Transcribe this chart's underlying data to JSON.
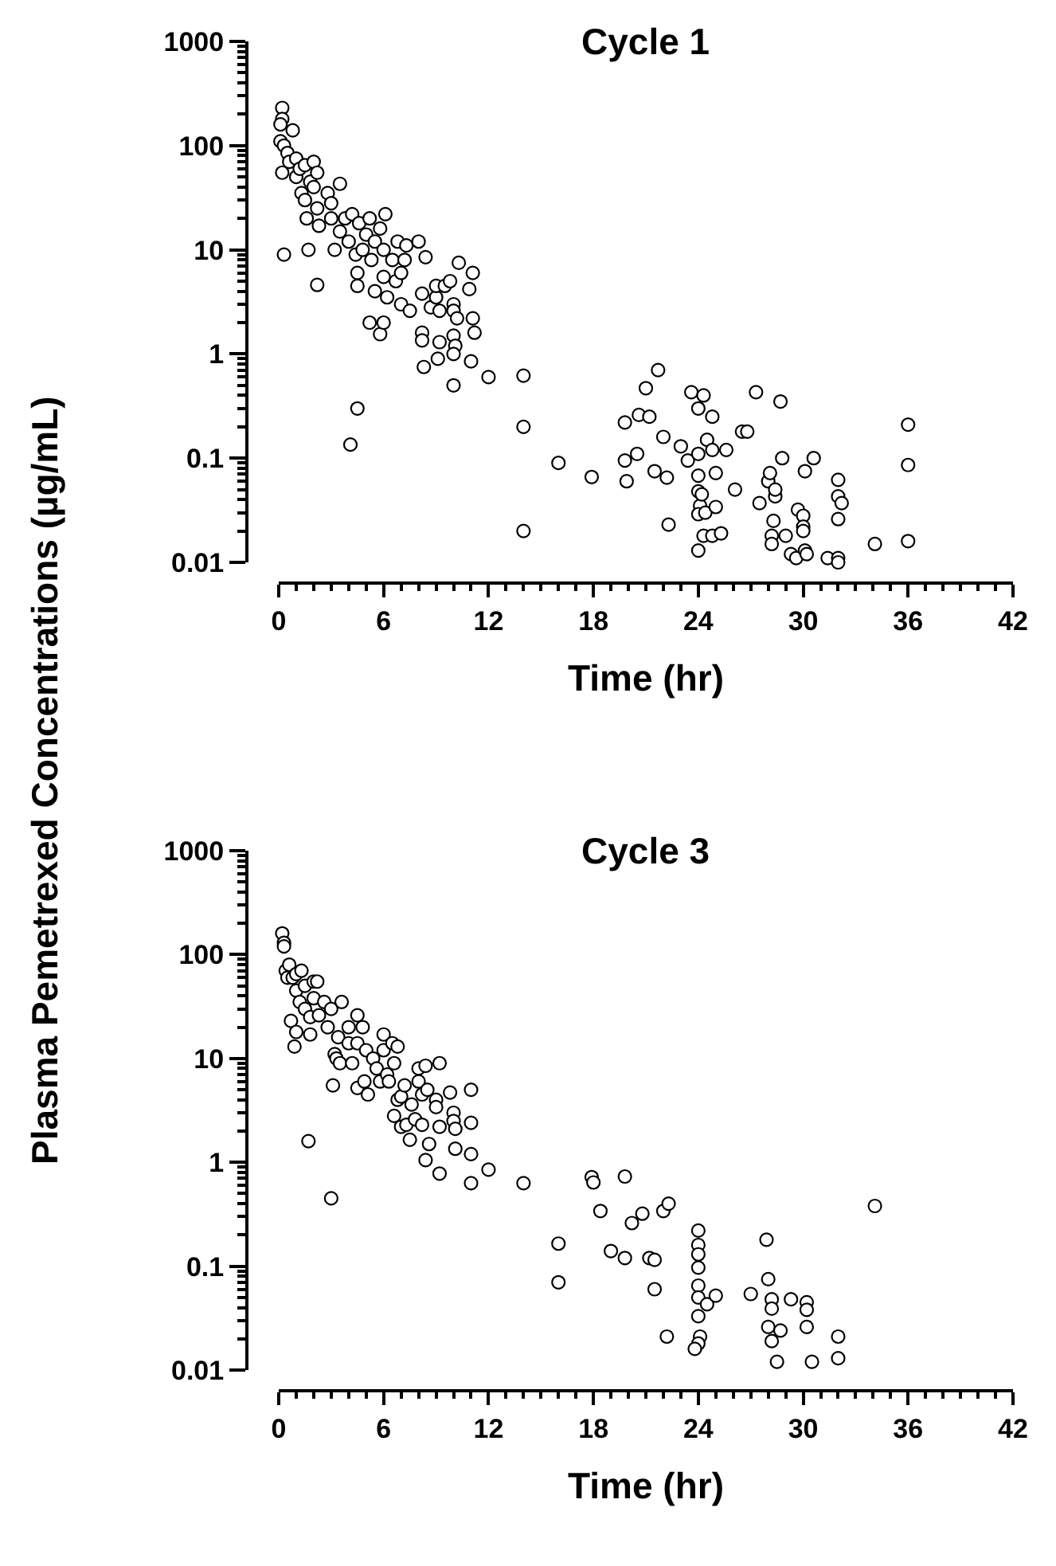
{
  "chart_data": [
    {
      "type": "scatter",
      "title": "Cycle 1",
      "xlabel": "Time (hr)",
      "ylabel": "Plasma Pemetrexed Concentrations (µg/mL)",
      "log": "y",
      "marker": "circle",
      "xlim": [
        0,
        42
      ],
      "xticks": [
        0,
        6,
        12,
        18,
        24,
        30,
        36,
        42
      ],
      "ylim": [
        0.01,
        1000
      ],
      "yticks": [
        0.01,
        0.1,
        1,
        10,
        100,
        1000
      ],
      "series": [
        {
          "color": "#ffffff",
          "x": [
            0.2,
            0.2,
            0.1,
            0.1,
            0.3,
            0.2,
            0.3,
            0.5,
            0.6,
            0.8,
            1,
            1,
            1.2,
            1.5,
            1.3,
            1.5,
            1.8,
            2,
            2,
            1.6,
            1.7,
            2.2,
            2.2,
            2.3,
            2.2,
            2.8,
            3,
            3,
            3.2,
            3.5,
            3.5,
            3.8,
            4,
            4.2,
            4.4,
            4.5,
            4.5,
            4.6,
            4.8,
            5,
            5.2,
            5.3,
            5.5,
            5.5,
            5.2,
            5.8,
            5.8,
            6,
            6,
            6.1,
            6,
            6.2,
            6.5,
            6.7,
            6.8,
            7,
            7,
            7.2,
            7.3,
            7.5,
            8,
            8.4,
            8.2,
            8.2,
            8.2,
            8.3,
            8.7,
            9,
            9,
            9.2,
            9.2,
            9.1,
            9.5,
            9.8,
            10,
            10,
            10.2,
            10,
            10.1,
            10,
            10,
            10.3,
            10.9,
            11.1,
            11.1,
            11.2,
            11,
            12,
            14,
            14,
            14,
            4.1,
            4.5,
            16,
            17.9,
            19.8,
            19.8,
            19.9,
            20.5,
            20.6,
            21.2,
            21,
            21.5,
            21.7,
            22,
            22.2,
            22.3,
            23,
            23.4,
            23.6,
            24,
            24.3,
            24.5,
            24,
            24,
            24,
            24.1,
            24,
            24.4,
            24.2,
            24,
            24.3,
            24.8,
            24.8,
            25,
            25,
            24.8,
            25.3,
            25.6,
            26.1,
            26.5,
            26.8,
            27.3,
            27.5,
            28,
            28.1,
            28.3,
            28.2,
            28.2,
            28.4,
            28.4,
            28.7,
            28.8,
            29,
            29.3,
            29.7,
            29.6,
            30.1,
            30.1,
            30.6,
            30,
            30,
            30,
            30.2,
            31.4,
            32,
            32,
            32.2,
            32,
            32,
            32,
            34.1,
            36,
            36,
            36
          ],
          "values": [
            230,
            180,
            160,
            110,
            100,
            55,
            9,
            85,
            70,
            140,
            75,
            50,
            60,
            65,
            35,
            30,
            45,
            40,
            70,
            20,
            10,
            55,
            25,
            17,
            4.6,
            35,
            20,
            28,
            10,
            43,
            15,
            20,
            12,
            22,
            9,
            6,
            4.5,
            18,
            10,
            14,
            20,
            8,
            12,
            4,
            2,
            1.55,
            16,
            5.5,
            10,
            22,
            2,
            3.5,
            8,
            5,
            12,
            6,
            3,
            8,
            11,
            2.6,
            12,
            8.5,
            3.8,
            1.6,
            1.35,
            0.75,
            2.8,
            3.5,
            4.5,
            2.6,
            1.3,
            0.9,
            4.5,
            5,
            3,
            2.6,
            2.2,
            1.5,
            1.2,
            1,
            0.5,
            7.5,
            4.2,
            6,
            2.2,
            1.6,
            0.85,
            0.6,
            0.62,
            0.2,
            0.02,
            0.135,
            0.3,
            0.09,
            0.066,
            0.22,
            0.095,
            0.06,
            0.11,
            0.26,
            0.25,
            0.47,
            0.075,
            0.7,
            0.16,
            0.065,
            0.023,
            0.13,
            0.095,
            0.43,
            0.3,
            0.4,
            0.15,
            0.11,
            0.068,
            0.048,
            0.035,
            0.029,
            0.03,
            0.045,
            0.013,
            0.018,
            0.25,
            0.12,
            0.072,
            0.034,
            0.018,
            0.019,
            0.12,
            0.05,
            0.18,
            0.18,
            0.43,
            0.037,
            0.06,
            0.072,
            0.025,
            0.018,
            0.015,
            0.043,
            0.05,
            0.35,
            0.1,
            0.018,
            0.012,
            0.032,
            0.011,
            0.075,
            0.013,
            0.1,
            0.028,
            0.022,
            0.02,
            0.012,
            0.011,
            0.062,
            0.043,
            0.037,
            0.026,
            0.011,
            0.01,
            0.015,
            0.21,
            0.086,
            0.016
          ]
        }
      ]
    },
    {
      "type": "scatter",
      "title": "Cycle 3",
      "xlabel": "Time (hr)",
      "log": "y",
      "marker": "circle",
      "xlim": [
        0,
        42
      ],
      "xticks": [
        0,
        6,
        12,
        18,
        24,
        30,
        36,
        42
      ],
      "ylim": [
        0.01,
        1000
      ],
      "yticks": [
        0.01,
        0.1,
        1,
        10,
        100,
        1000
      ],
      "series": [
        {
          "color": "#ffffff",
          "x": [
            0.2,
            0.3,
            0.3,
            0.4,
            0.5,
            0.6,
            0.8,
            1,
            1,
            0.7,
            1,
            0.9,
            1.2,
            1.3,
            1.5,
            1.5,
            1.8,
            1.8,
            2,
            2,
            2.2,
            2.3,
            2.6,
            2.8,
            3,
            3.2,
            3.4,
            3.3,
            3.5,
            3.1,
            3.6,
            4,
            4,
            4.2,
            4.5,
            4.5,
            4.5,
            4.9,
            4.8,
            5,
            5.1,
            5.4,
            5.6,
            5.8,
            6,
            6.2,
            6,
            6.3,
            6.5,
            6.8,
            6.6,
            6.8,
            6.6,
            7,
            7,
            7.2,
            7.3,
            7.5,
            7.6,
            7.8,
            8,
            8,
            8.2,
            8.2,
            8.4,
            8.5,
            8.6,
            8.4,
            9,
            9,
            9.2,
            9.2,
            9.2,
            9.8,
            10,
            10,
            10.1,
            10.1,
            11,
            11,
            11,
            11,
            12,
            1.7,
            3,
            14,
            16,
            16,
            17.9,
            18,
            18.4,
            19,
            19.8,
            19.8,
            20.2,
            20.8,
            21.2,
            21.5,
            21.5,
            22,
            22.3,
            22.2,
            24,
            24,
            24,
            24,
            24,
            24,
            24,
            24.1,
            24,
            23.8,
            24.5,
            25,
            27,
            27.9,
            28,
            28.2,
            28.2,
            28,
            28.2,
            28.5,
            28.7,
            29.3,
            30.2,
            30.2,
            30.2,
            30.5,
            32,
            32,
            34.1
          ],
          "values": [
            160,
            130,
            120,
            70,
            60,
            80,
            60,
            65,
            45,
            23,
            18,
            13,
            35,
            70,
            50,
            30,
            25,
            17,
            55,
            38,
            55,
            26,
            35,
            20,
            30,
            11,
            16,
            10,
            9,
            5.5,
            35,
            20,
            14,
            9,
            26,
            14,
            5.2,
            6,
            20,
            12,
            4.5,
            10,
            8,
            6,
            12,
            7,
            17,
            6,
            14,
            13,
            9,
            4,
            2.8,
            2.2,
            4.3,
            5.5,
            2.3,
            1.65,
            3.6,
            2.6,
            6,
            8,
            2.3,
            4.5,
            8.5,
            5,
            1.5,
            1.05,
            4,
            3.4,
            9,
            2.2,
            0.78,
            4.7,
            3,
            2.5,
            2.1,
            1.35,
            5,
            2.4,
            1.2,
            0.63,
            0.85,
            1.6,
            0.45,
            0.63,
            0.165,
            0.07,
            0.72,
            0.64,
            0.34,
            0.14,
            0.73,
            0.12,
            0.26,
            0.32,
            0.12,
            0.115,
            0.06,
            0.34,
            0.4,
            0.021,
            0.22,
            0.16,
            0.13,
            0.097,
            0.065,
            0.05,
            0.033,
            0.021,
            0.018,
            0.016,
            0.043,
            0.052,
            0.054,
            0.18,
            0.075,
            0.048,
            0.039,
            0.026,
            0.019,
            0.012,
            0.024,
            0.048,
            0.045,
            0.038,
            0.026,
            0.012,
            0.021,
            0.013,
            0.38
          ]
        }
      ]
    }
  ]
}
